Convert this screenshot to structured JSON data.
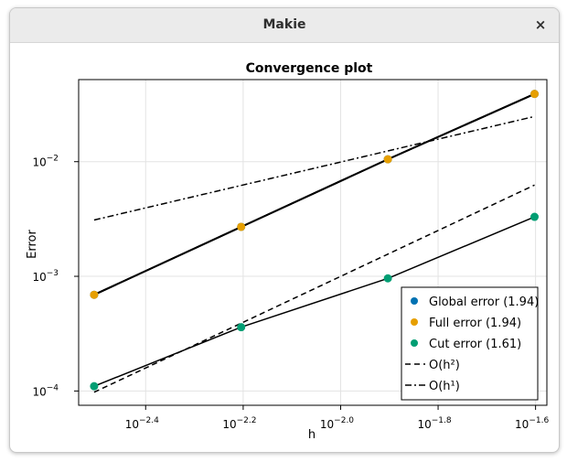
{
  "window": {
    "title": "Makie",
    "close_glyph": "×",
    "close_icon": "close-icon"
  },
  "chart_data": {
    "type": "scatter",
    "title": "Convergence plot",
    "xlabel": "h",
    "ylabel": "Error",
    "xscale": "log10",
    "yscale": "log10",
    "xlim": [
      0.0029,
      0.0265
    ],
    "ylim": [
      7.5e-05,
      0.052
    ],
    "grid": true,
    "legend_position": "bottom-right",
    "xticks": [
      {
        "value": 0.00398,
        "base": "10",
        "exp": "−2.4"
      },
      {
        "value": 0.00631,
        "base": "10",
        "exp": "−2.2"
      },
      {
        "value": 0.01,
        "base": "10",
        "exp": "−2.0"
      },
      {
        "value": 0.01585,
        "base": "10",
        "exp": "−1.8"
      },
      {
        "value": 0.02512,
        "base": "10",
        "exp": "−1.6"
      }
    ],
    "yticks": [
      {
        "value": 0.0001,
        "base": "10",
        "exp": "−4"
      },
      {
        "value": 0.001,
        "base": "10",
        "exp": "−3"
      },
      {
        "value": 0.01,
        "base": "10",
        "exp": "−2"
      }
    ],
    "x": [
      0.00312,
      0.00625,
      0.0125,
      0.025
    ],
    "series": [
      {
        "name": "Global error (1.94)",
        "color": "#0072b2",
        "values": [
          0.00069,
          0.0027,
          0.0105,
          0.039
        ],
        "line": "solid-thick",
        "markers": true
      },
      {
        "name": "Full error (1.94)",
        "color": "#e69f00",
        "values": [
          0.00069,
          0.0027,
          0.0105,
          0.039
        ],
        "line": "solid-thick",
        "markers": true
      },
      {
        "name": "Cut error (1.61)",
        "color": "#009e73",
        "values": [
          0.00011,
          0.00036,
          0.00096,
          0.0033
        ],
        "line": "solid",
        "markers": true
      },
      {
        "name": "O(h²)",
        "color": "#000000",
        "values": [
          9.75e-05,
          0.00039,
          0.00156,
          0.00625
        ],
        "line": "dashed",
        "markers": false
      },
      {
        "name": "O(h¹)",
        "color": "#000000",
        "values": [
          0.0031,
          0.0062,
          0.0124,
          0.0248
        ],
        "line": "dashdot",
        "markers": false
      }
    ]
  }
}
